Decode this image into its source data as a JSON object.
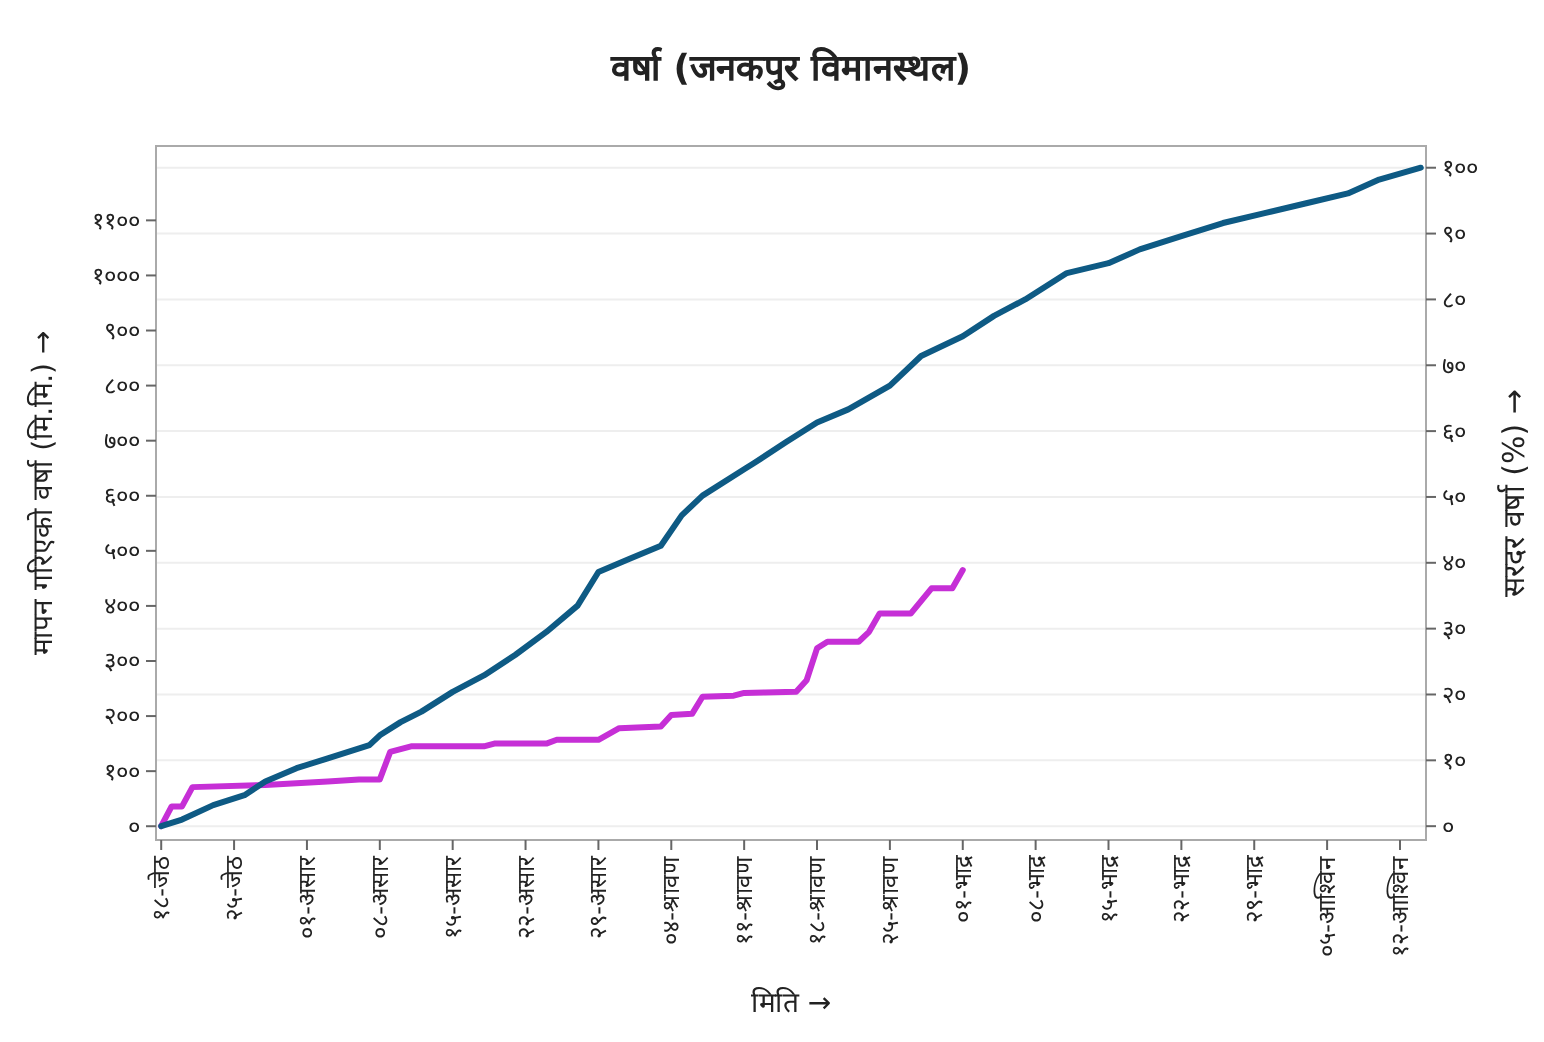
{
  "chart_data": {
    "type": "line",
    "title": "वर्षा (जनकपुर विमानस्थल)",
    "xlabel": "मिति →",
    "ylabel": "मापन गरिएको वर्षा (मि.मि.) →",
    "y2label": "सरदर वर्षा (%) →",
    "categories": [
      "१८-जेठ",
      null,
      null,
      null,
      null,
      null,
      null,
      "२५-जेठ",
      null,
      null,
      null,
      null,
      null,
      null,
      "०१-असार",
      null,
      null,
      null,
      null,
      null,
      null,
      "०८-असार",
      null,
      null,
      null,
      null,
      null,
      null,
      "१५-असार",
      null,
      null,
      null,
      null,
      null,
      null,
      "२२-असार",
      null,
      null,
      null,
      null,
      null,
      null,
      "२९-असार",
      null,
      null,
      null,
      null,
      null,
      null,
      "०४-श्रावण",
      null,
      null,
      null,
      null,
      null,
      null,
      "११-श्रावण",
      null,
      null,
      null,
      null,
      null,
      null,
      "१८-श्रावण",
      null,
      null,
      null,
      null,
      null,
      null,
      "२५-श्रावण",
      null,
      null,
      null,
      null,
      null,
      null,
      "०१-भाद्र",
      null,
      null,
      null,
      null,
      null,
      null,
      "०८-भाद्र",
      null,
      null,
      null,
      null,
      null,
      null,
      "१५-भाद्र",
      null,
      null,
      null,
      null,
      null,
      null,
      "२२-भाद्र",
      null,
      null,
      null,
      null,
      null,
      null,
      "२९-भाद्र",
      null,
      null,
      null,
      null,
      null,
      null,
      "०५-आश्विन",
      null,
      null,
      null,
      null,
      null,
      null,
      "१२-आश्विन",
      null,
      null
    ],
    "ylim": [
      -25,
      1235
    ],
    "yticks": [
      {
        "value": 0,
        "label": "०"
      },
      {
        "value": 100,
        "label": "१००"
      },
      {
        "value": 200,
        "label": "२००"
      },
      {
        "value": 300,
        "label": "३००"
      },
      {
        "value": 400,
        "label": "४००"
      },
      {
        "value": 500,
        "label": "५००"
      },
      {
        "value": 600,
        "label": "६००"
      },
      {
        "value": 700,
        "label": "७००"
      },
      {
        "value": 800,
        "label": "८००"
      },
      {
        "value": 900,
        "label": "९००"
      },
      {
        "value": 1000,
        "label": "१०००"
      },
      {
        "value": 1100,
        "label": "११००"
      }
    ],
    "y2lim": [
      -2.1,
      103.3
    ],
    "y2ticks": [
      {
        "value": 0,
        "label": "०"
      },
      {
        "value": 10,
        "label": "१०"
      },
      {
        "value": 20,
        "label": "२०"
      },
      {
        "value": 30,
        "label": "३०"
      },
      {
        "value": 40,
        "label": "४०"
      },
      {
        "value": 50,
        "label": "५०"
      },
      {
        "value": 60,
        "label": "६०"
      },
      {
        "value": 70,
        "label": "७०"
      },
      {
        "value": 80,
        "label": "८०"
      },
      {
        "value": 90,
        "label": "९०"
      },
      {
        "value": 100,
        "label": "१००"
      }
    ],
    "grid": "y2",
    "marker": "none",
    "line_style": "solid",
    "series": [
      {
        "color": "#c62fd6",
        "axis": "y",
        "values": [
          0,
          36,
          36,
          71,
          null,
          null,
          null,
          null,
          null,
          null,
          75,
          null,
          null,
          null,
          null,
          null,
          81,
          null,
          null,
          85,
          null,
          85,
          135,
          null,
          145,
          null,
          null,
          null,
          null,
          null,
          null,
          145,
          150,
          null,
          null,
          null,
          null,
          150,
          157,
          null,
          null,
          null,
          157,
          null,
          178,
          null,
          null,
          null,
          181,
          202,
          null,
          204,
          235,
          null,
          null,
          237,
          242,
          null,
          243,
          null,
          null,
          244,
          265,
          323,
          335,
          null,
          null,
          335,
          353,
          386,
          null,
          null,
          386,
          null,
          432,
          null,
          432,
          465,
          null,
          null,
          null,
          null,
          null,
          null,
          null,
          null,
          null,
          null,
          null,
          null,
          null,
          null,
          null,
          null,
          null,
          null,
          null,
          null,
          null,
          null,
          null,
          null,
          null,
          null,
          null,
          null,
          null,
          null,
          null,
          null,
          null,
          null,
          null,
          null,
          null,
          null,
          null,
          null,
          null,
          null,
          null,
          null
        ]
      },
      {
        "color": "#0e5a84",
        "axis": "y2",
        "values": [
          0,
          null,
          1,
          null,
          null,
          3.2,
          null,
          null,
          4.7,
          null,
          6.8,
          null,
          null,
          8.8,
          null,
          null,
          10.3,
          null,
          null,
          null,
          12.3,
          13.8,
          null,
          15.8,
          null,
          17.4,
          null,
          null,
          20.4,
          null,
          null,
          22.9,
          null,
          null,
          26,
          null,
          null,
          29.5,
          null,
          null,
          33.5,
          null,
          38.6,
          null,
          null,
          40.6,
          null,
          null,
          42.6,
          null,
          47.2,
          null,
          50.2,
          null,
          null,
          null,
          54.2,
          55.2,
          null,
          null,
          58.3,
          null,
          null,
          61.3,
          null,
          null,
          63.3,
          null,
          null,
          null,
          66.9,
          null,
          null,
          71.4,
          null,
          null,
          null,
          74.4,
          null,
          null,
          77.5,
          null,
          null,
          80,
          null,
          null,
          null,
          84,
          null,
          null,
          null,
          85.5,
          null,
          null,
          87.6,
          null,
          null,
          null,
          89.6,
          null,
          null,
          null,
          91.6,
          null,
          null,
          null,
          93.1,
          null,
          null,
          null,
          94.6,
          null,
          null,
          null,
          96.1,
          null,
          null,
          98.2,
          null,
          null,
          null,
          100
        ]
      }
    ]
  }
}
